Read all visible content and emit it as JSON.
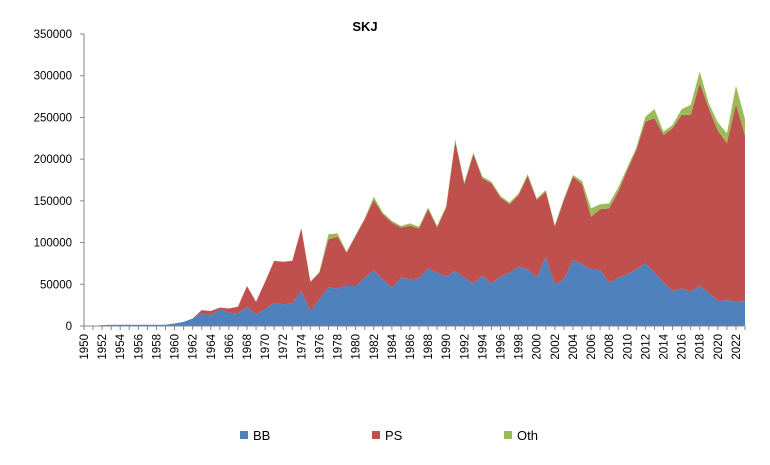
{
  "chart_data": {
    "type": "area",
    "stacked": true,
    "title": "SKJ",
    "xlabel": "",
    "ylabel": "",
    "ylim": [
      0,
      350000
    ],
    "yticks": [
      "0",
      "50000",
      "100000",
      "150000",
      "200000",
      "250000",
      "300000",
      "350000"
    ],
    "x": [
      1950,
      1951,
      1952,
      1953,
      1954,
      1955,
      1956,
      1957,
      1958,
      1959,
      1960,
      1961,
      1962,
      1963,
      1964,
      1965,
      1966,
      1967,
      1968,
      1969,
      1970,
      1971,
      1972,
      1973,
      1974,
      1975,
      1976,
      1977,
      1978,
      1979,
      1980,
      1981,
      1982,
      1983,
      1984,
      1985,
      1986,
      1987,
      1988,
      1989,
      1990,
      1991,
      1992,
      1993,
      1994,
      1995,
      1996,
      1997,
      1998,
      1999,
      2000,
      2001,
      2002,
      2003,
      2004,
      2005,
      2006,
      2007,
      2008,
      2009,
      2010,
      2011,
      2012,
      2013,
      2014,
      2015,
      2016,
      2017,
      2018,
      2019,
      2020,
      2021,
      2022,
      2023
    ],
    "xtick_labels": [
      "1950",
      "1952",
      "1954",
      "1956",
      "1958",
      "1960",
      "1962",
      "1964",
      "1966",
      "1968",
      "1970",
      "1972",
      "1974",
      "1976",
      "1978",
      "1980",
      "1982",
      "1984",
      "1986",
      "1988",
      "1990",
      "1992",
      "1994",
      "1996",
      "1998",
      "2000",
      "2002",
      "2004",
      "2006",
      "2008",
      "2010",
      "2012",
      "2014",
      "2016",
      "2018",
      "2020",
      "2022"
    ],
    "legend_position": "bottom",
    "grid": false,
    "series": [
      {
        "name": "BB",
        "color": "#4f81bd",
        "values": [
          0,
          0,
          1000,
          1500,
          1500,
          1500,
          1500,
          1500,
          1500,
          1500,
          3000,
          5000,
          9000,
          15000,
          13000,
          20000,
          16000,
          15000,
          23000,
          14000,
          20000,
          28000,
          26000,
          27000,
          42000,
          18000,
          32000,
          46000,
          45000,
          48000,
          48000,
          58000,
          67000,
          56000,
          46000,
          58000,
          56000,
          57000,
          69000,
          64000,
          59000,
          66000,
          58000,
          51000,
          60000,
          51000,
          59000,
          64000,
          71000,
          68000,
          58000,
          83000,
          50000,
          56000,
          79000,
          74000,
          68000,
          67000,
          52000,
          58000,
          62000,
          68000,
          75000,
          64000,
          52000,
          42000,
          45000,
          41000,
          48000,
          40000,
          30000,
          31000,
          29000,
          30000
        ]
      },
      {
        "name": "PS",
        "color": "#c0504d",
        "values": [
          0,
          0,
          0,
          0,
          0,
          0,
          0,
          0,
          0,
          0,
          0,
          0,
          0,
          4000,
          5000,
          2000,
          5000,
          8000,
          25000,
          15000,
          33000,
          50000,
          51000,
          51000,
          75000,
          35000,
          32000,
          58000,
          62000,
          40000,
          60000,
          70000,
          84000,
          78000,
          78000,
          60000,
          64000,
          60000,
          71000,
          54000,
          83000,
          155000,
          112000,
          155000,
          117000,
          120000,
          95000,
          82000,
          86000,
          112000,
          93000,
          78000,
          69000,
          95000,
          100000,
          96000,
          63000,
          73000,
          89000,
          103000,
          125000,
          143000,
          170000,
          185000,
          177000,
          195000,
          208000,
          212000,
          243000,
          221000,
          204000,
          188000,
          237000,
          198000
        ]
      },
      {
        "name": "Oth",
        "color": "#9bbb59",
        "values": [
          0,
          0,
          0,
          0,
          0,
          0,
          0,
          0,
          0,
          0,
          0,
          0,
          0,
          0,
          0,
          0,
          0,
          0,
          0,
          0,
          0,
          0,
          0,
          0,
          0,
          0,
          1000,
          6000,
          4000,
          1000,
          1000,
          1000,
          4000,
          2000,
          2000,
          2000,
          3000,
          2000,
          2000,
          2000,
          2000,
          3000,
          2000,
          2000,
          2000,
          2000,
          2000,
          2000,
          2000,
          2000,
          2000,
          2000,
          2000,
          2000,
          2000,
          4000,
          10000,
          6000,
          6000,
          5000,
          3000,
          3000,
          6000,
          11000,
          4000,
          4000,
          7000,
          12000,
          14000,
          6000,
          10000,
          12000,
          22000,
          20000
        ]
      }
    ]
  }
}
